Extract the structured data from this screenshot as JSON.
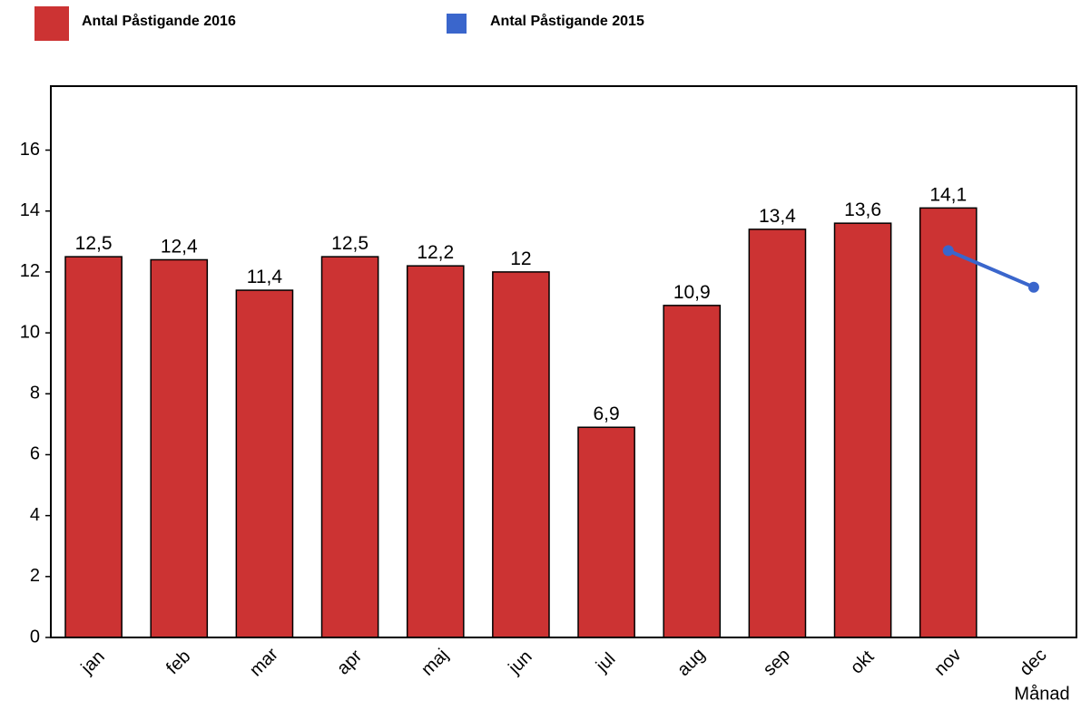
{
  "chart_data": {
    "type": "bar",
    "x_label": "Månad",
    "categories": [
      "jan",
      "feb",
      "mar",
      "apr",
      "maj",
      "jun",
      "jul",
      "aug",
      "sep",
      "okt",
      "nov",
      "dec"
    ],
    "series": [
      {
        "name": "Antal Påstigande 2016",
        "type": "bar",
        "color": "#cc3333",
        "values": [
          12.5,
          12.4,
          11.4,
          12.5,
          12.2,
          12,
          6.9,
          10.9,
          13.4,
          13.6,
          14.1,
          null
        ],
        "value_labels": [
          "12,5",
          "12,4",
          "11,4",
          "12,5",
          "12,2",
          "12",
          "6,9",
          "10,9",
          "13,4",
          "13,6",
          "14,1",
          null
        ]
      },
      {
        "name": "Antal Påstigande 2015",
        "type": "line",
        "color": "#3a66cc",
        "values": [
          null,
          null,
          null,
          null,
          null,
          null,
          null,
          null,
          null,
          null,
          12.7,
          11.5
        ]
      }
    ],
    "ylim": [
      0,
      18.1
    ],
    "yticks": [
      0,
      2,
      4,
      6,
      8,
      10,
      12,
      14,
      16
    ]
  }
}
